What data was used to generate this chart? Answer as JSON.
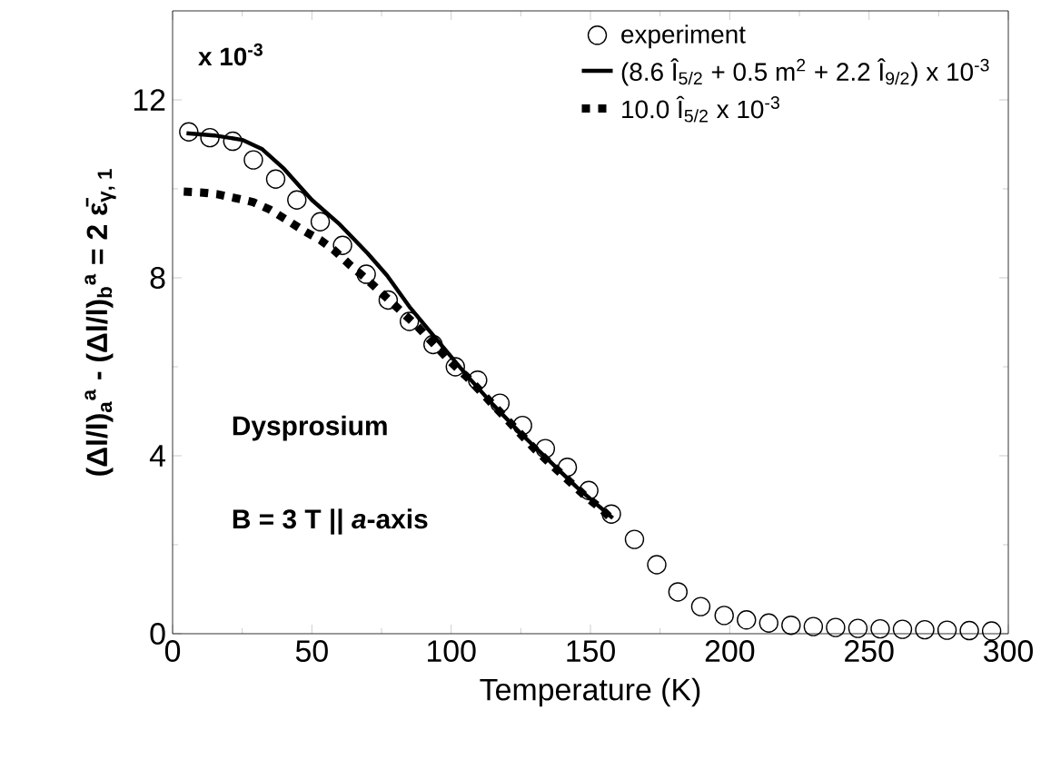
{
  "chart_data": {
    "type": "scatter",
    "xlabel": "Temperature (K)",
    "ylabel": "(Δ**l**/**l**)$_{a}$$^{a}$ - (Δ**l**/**l**)$_{b}$$^{a}$ = 2 ε̄$_{γ, 1}$",
    "xlim": [
      0,
      300
    ],
    "ylim": [
      0,
      14
    ],
    "xticks": [
      0,
      50,
      100,
      150,
      200,
      250,
      300
    ],
    "yticks": [
      0,
      4,
      8,
      12
    ],
    "legend": "top right",
    "grid": false,
    "annotations": [
      "x 10$^{-3}$",
      "Dysprosium",
      "B = 3 T || *a*-axis"
    ],
    "series": [
      {
        "name": "experiment",
        "marker": "circle",
        "color": "#000000",
        "x": [
          5.8,
          13.4,
          21.6,
          29,
          37,
          44.6,
          53,
          61,
          69.5,
          77.4,
          85,
          93.5,
          101.5,
          109.5,
          117.5,
          125.6,
          133.8,
          141.7,
          149.4,
          157.5,
          165.8,
          173.8,
          181.4,
          189.6,
          198,
          206,
          214,
          222,
          230,
          238,
          246,
          254,
          262,
          270,
          278,
          286,
          294
        ],
        "values": [
          11.28,
          11.15,
          11.07,
          10.65,
          10.22,
          9.75,
          9.26,
          8.73,
          8.08,
          7.5,
          7.02,
          6.5,
          6.0,
          5.7,
          5.18,
          4.68,
          4.16,
          3.74,
          3.22,
          2.69,
          2.12,
          1.55,
          0.94,
          0.61,
          0.41,
          0.31,
          0.24,
          0.19,
          0.16,
          0.14,
          0.12,
          0.11,
          0.1,
          0.09,
          0.08,
          0.07,
          0.06
        ]
      },
      {
        "name": "(8.6 Î$_{5/2}$ + 0.5 m$^{2}$ + 2.2 Î$_{9/2}$) x 10$^{-3}$",
        "type": "line",
        "line_style": "solid",
        "color": "#000000",
        "x": [
          5,
          15,
          25,
          32,
          40,
          50,
          60,
          70,
          77,
          85,
          95,
          105,
          115,
          125,
          135,
          145,
          158
        ],
        "values": [
          11.25,
          11.2,
          11.1,
          10.9,
          10.45,
          9.75,
          9.2,
          8.55,
          8.05,
          7.35,
          6.6,
          5.85,
          5.15,
          4.5,
          3.9,
          3.3,
          2.6
        ]
      },
      {
        "name": "10.0 Î$_{5/2}$  x 10$^{-3}$",
        "type": "line",
        "line_style": "dotted",
        "color": "#000000",
        "x": [
          4,
          10,
          16,
          22,
          29,
          35,
          41,
          47,
          53,
          58,
          64,
          70,
          76,
          82,
          88,
          94,
          100,
          106,
          112,
          118,
          124,
          130,
          136,
          142,
          148,
          154,
          158
        ],
        "values": [
          9.94,
          9.92,
          9.88,
          9.8,
          9.7,
          9.53,
          9.3,
          9.06,
          8.85,
          8.62,
          8.27,
          7.95,
          7.6,
          7.25,
          6.9,
          6.5,
          6.1,
          5.75,
          5.35,
          4.95,
          4.55,
          4.15,
          3.8,
          3.45,
          3.1,
          2.8,
          2.55
        ]
      }
    ]
  }
}
